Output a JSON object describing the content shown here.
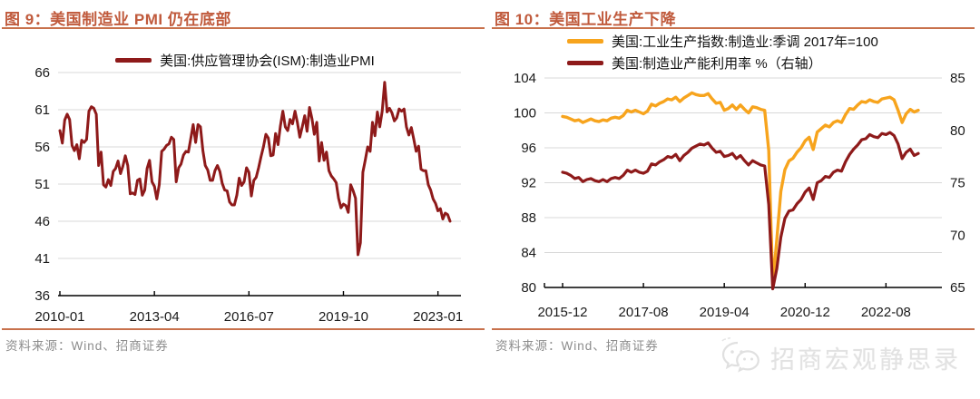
{
  "watermark": {
    "text": "招商宏观静思录",
    "icon": "wechat-icon",
    "color": "#E2E2E2"
  },
  "colors": {
    "title": "#C05A3C",
    "rule": "#C8714C",
    "pmi_line": "#8E1A1A",
    "ip_line": "#F7A41D",
    "caputil_line": "#8E1A1A",
    "gridline": "#D8D8D8",
    "axis": "#000000",
    "source_text": "#8C8C8C"
  },
  "chart_data": [
    {
      "type": "line",
      "title": "图 9：美国制造业 PMI 仍在底部",
      "source": "资料来源：Wind、招商证券",
      "legend_position": "top-center",
      "grid": true,
      "x_start": "2010-01",
      "x_end": "2023-06",
      "x_freq": "monthly",
      "x_tick_labels": [
        "2010-01",
        "2013-04",
        "2016-07",
        "2019-10",
        "2023-01"
      ],
      "x_tick_month_index": [
        0,
        39,
        78,
        117,
        156
      ],
      "y_axis": {
        "min": 36,
        "max": 66,
        "step": 5,
        "ticks": [
          36,
          41,
          46,
          51,
          56,
          61,
          66
        ]
      },
      "series": [
        {
          "name": "美国:供应管理协会(ISM):制造业PMI",
          "color": "#8E1A1A",
          "axis": "left",
          "width": 3,
          "values": [
            58.2,
            56.5,
            59.6,
            60.4,
            59.7,
            56.2,
            55.5,
            56.3,
            54.4,
            56.9,
            56.6,
            57.0,
            60.8,
            61.4,
            61.2,
            60.4,
            53.5,
            55.3,
            50.9,
            50.6,
            51.6,
            50.8,
            52.7,
            53.1,
            54.1,
            52.4,
            53.4,
            54.8,
            53.5,
            49.7,
            49.8,
            49.6,
            51.5,
            51.7,
            49.5,
            50.2,
            53.1,
            54.2,
            51.3,
            50.7,
            49.0,
            50.9,
            55.4,
            55.7,
            56.2,
            56.4,
            57.3,
            57.0,
            51.3,
            53.2,
            53.7,
            54.9,
            55.4,
            55.3,
            57.1,
            59.0,
            56.6,
            59.0,
            58.7,
            55.5,
            53.5,
            52.9,
            51.5,
            51.5,
            52.8,
            53.5,
            52.7,
            51.1,
            50.2,
            50.1,
            48.6,
            48.2,
            48.2,
            49.5,
            51.8,
            50.8,
            51.3,
            53.2,
            52.6,
            49.4,
            51.5,
            51.9,
            53.2,
            54.7,
            56.0,
            57.7,
            57.2,
            54.8,
            54.9,
            57.8,
            56.3,
            58.8,
            60.8,
            58.7,
            58.2,
            59.7,
            59.1,
            60.8,
            59.3,
            57.3,
            58.7,
            60.2,
            58.1,
            61.3,
            59.8,
            57.7,
            59.3,
            54.1,
            56.6,
            54.2,
            55.3,
            52.8,
            52.1,
            51.7,
            51.2,
            49.1,
            47.8,
            48.3,
            48.1,
            47.2,
            50.9,
            50.1,
            49.1,
            41.5,
            43.1,
            52.6,
            54.2,
            56.0,
            55.4,
            59.3,
            57.5,
            60.7,
            58.7,
            60.8,
            64.7,
            60.7,
            61.2,
            60.6,
            59.5,
            59.9,
            61.1,
            60.8,
            61.1,
            58.7,
            57.6,
            58.6,
            57.1,
            55.4,
            56.1,
            53.0,
            52.8,
            52.8,
            50.9,
            50.2,
            49.0,
            48.4,
            47.4,
            47.7,
            46.3,
            47.1,
            46.9,
            46.0
          ]
        }
      ]
    },
    {
      "type": "line",
      "title": "图 10：美国工业生产下降",
      "source": "资料来源：Wind、招商证券",
      "legend_position": "top-left",
      "grid": true,
      "x_start": "2015-12",
      "x_end": "2023-04",
      "x_freq": "monthly",
      "x_tick_labels": [
        "2015-12",
        "2017-08",
        "2019-04",
        "2020-12",
        "2022-08"
      ],
      "x_tick_month_index": [
        0,
        20,
        40,
        60,
        80
      ],
      "y_axis_left": {
        "min": 80,
        "max": 104,
        "step": 4,
        "ticks": [
          80,
          84,
          88,
          92,
          96,
          100,
          104
        ]
      },
      "y_axis_right": {
        "min": 65,
        "max": 85,
        "step": 5,
        "ticks": [
          65,
          70,
          75,
          80,
          85
        ]
      },
      "series": [
        {
          "name": "美国:工业生产指数:制造业:季调 2017年=100",
          "color": "#F7A41D",
          "axis": "left",
          "width": 3.4,
          "values": [
            99.6,
            99.5,
            99.3,
            99.1,
            99.2,
            98.9,
            99.1,
            99.3,
            99.1,
            99.0,
            99.2,
            99.1,
            99.4,
            99.5,
            99.4,
            99.7,
            100.3,
            100.1,
            100.3,
            100.1,
            99.9,
            100.2,
            101.0,
            100.8,
            101.1,
            101.3,
            101.6,
            101.5,
            101.8,
            101.3,
            101.7,
            102.0,
            102.3,
            102.1,
            102.0,
            102.0,
            102.2,
            101.6,
            101.1,
            101.2,
            100.3,
            100.5,
            100.9,
            100.4,
            100.9,
            100.4,
            100.0,
            100.7,
            100.6,
            100.4,
            100.3,
            95.7,
            80.3,
            85.5,
            91.0,
            93.5,
            94.5,
            94.8,
            95.5,
            96.0,
            96.8,
            97.2,
            95.8,
            97.8,
            98.2,
            98.6,
            98.4,
            98.9,
            99.1,
            98.9,
            99.8,
            100.5,
            100.4,
            100.9,
            101.3,
            101.2,
            101.5,
            101.3,
            101.2,
            101.6,
            101.7,
            101.8,
            101.5,
            100.3,
            98.9,
            99.9,
            100.4,
            100.1,
            100.3
          ]
        },
        {
          "name": "美国:制造业产能利用率 %（右轴）",
          "color": "#8E1A1A",
          "axis": "right",
          "width": 3.2,
          "values": [
            76.0,
            75.9,
            75.7,
            75.4,
            75.5,
            75.1,
            75.3,
            75.4,
            75.2,
            75.1,
            75.3,
            75.1,
            75.4,
            75.5,
            75.4,
            75.7,
            76.2,
            76.0,
            76.2,
            76.0,
            75.9,
            76.1,
            76.8,
            76.7,
            77.0,
            77.2,
            77.5,
            77.4,
            77.7,
            77.1,
            77.6,
            77.9,
            78.3,
            78.5,
            78.7,
            78.6,
            78.8,
            78.3,
            77.9,
            78.0,
            77.5,
            77.6,
            77.8,
            77.3,
            77.6,
            77.1,
            76.7,
            77.1,
            76.9,
            76.7,
            76.6,
            72.9,
            64.0,
            66.8,
            69.8,
            71.6,
            72.3,
            72.4,
            73.0,
            73.4,
            74.1,
            74.5,
            73.4,
            75.0,
            75.2,
            75.6,
            75.5,
            76.0,
            76.2,
            76.1,
            77.0,
            77.7,
            78.2,
            78.6,
            79.1,
            79.2,
            79.6,
            79.4,
            79.3,
            79.7,
            79.6,
            79.8,
            79.5,
            78.7,
            77.3,
            77.9,
            78.2,
            77.6,
            77.8
          ]
        }
      ]
    }
  ]
}
